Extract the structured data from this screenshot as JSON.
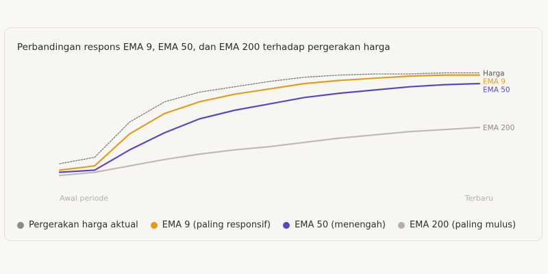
{
  "chart_data": {
    "type": "line",
    "title": "Perbandingan respons EMA 9, EMA 50, dan EMA 200 terhadap pergerakan harga",
    "x_start_label": "Awal periode",
    "x_end_label": "Terbaru",
    "x": [
      0,
      1,
      2,
      3,
      4,
      5,
      6,
      7,
      8,
      9,
      10,
      11,
      12
    ],
    "ylim": [
      0,
      100
    ],
    "grid": false,
    "legend_position": "bottom",
    "series": [
      {
        "key": "price",
        "name": "Pergerakan harga aktual",
        "end_label": "Harga",
        "color": "#777777",
        "legend_color": "#8a8a8a",
        "style": "dotted",
        "values": [
          16,
          22,
          55,
          74,
          83,
          88,
          93,
          97,
          99,
          100,
          100,
          101,
          101
        ]
      },
      {
        "key": "ema9",
        "name": "EMA 9 (paling responsif)",
        "end_label": "EMA 9",
        "color": "#e49b1c",
        "legend_color": "#e49b1c",
        "style": "solid",
        "values": [
          10,
          14,
          44,
          63,
          74,
          81,
          86,
          91,
          94,
          96,
          98,
          99,
          99
        ]
      },
      {
        "key": "ema50",
        "name": "EMA 50 (menengah)",
        "end_label": "EMA 50",
        "color": "#5b45c4",
        "legend_color": "#5b45c4",
        "style": "solid",
        "values": [
          8,
          10,
          29,
          45,
          58,
          66,
          72,
          78,
          82,
          85,
          88,
          90,
          91
        ]
      },
      {
        "key": "ema200",
        "name": "EMA 200 (paling mulus)",
        "end_label": "EMA 200",
        "color": "#bdbab3",
        "legend_color": "#b3b0a8",
        "style": "solid",
        "values": [
          5,
          8,
          14,
          20,
          25,
          29,
          32,
          36,
          40,
          43,
          46,
          48,
          50
        ]
      }
    ]
  }
}
